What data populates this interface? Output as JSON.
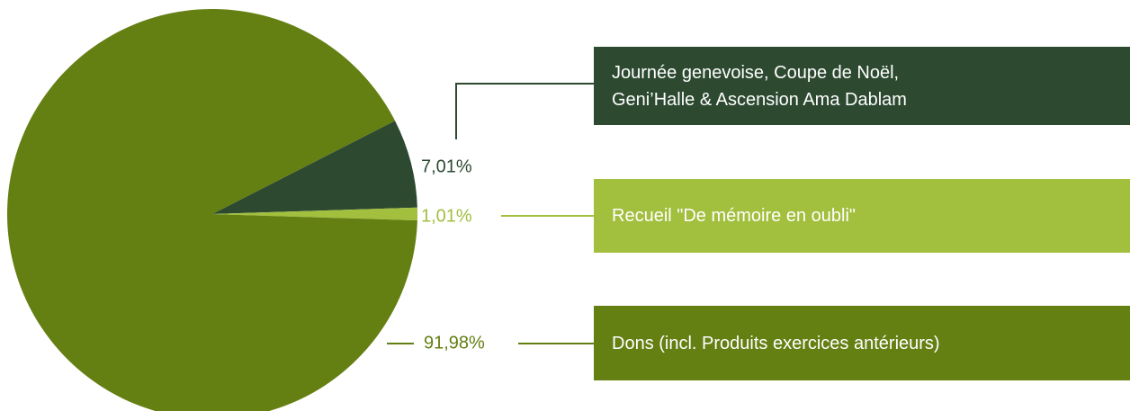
{
  "chart_data": {
    "type": "pie",
    "categories": [
      "Journée genevoise, Coupe de Noël, Geni’Halle & Ascension Ama Dablam",
      "Recueil \"De mémoire en oubli\"",
      "Dons (incl. Produits exercices antérieurs)"
    ],
    "values": [
      7.01,
      1.01,
      91.98
    ],
    "value_labels": [
      "7,01%",
      "1,01%",
      "91,98%"
    ],
    "colors": [
      "#2d4a31",
      "#a2bf3e",
      "#647f12"
    ]
  }
}
